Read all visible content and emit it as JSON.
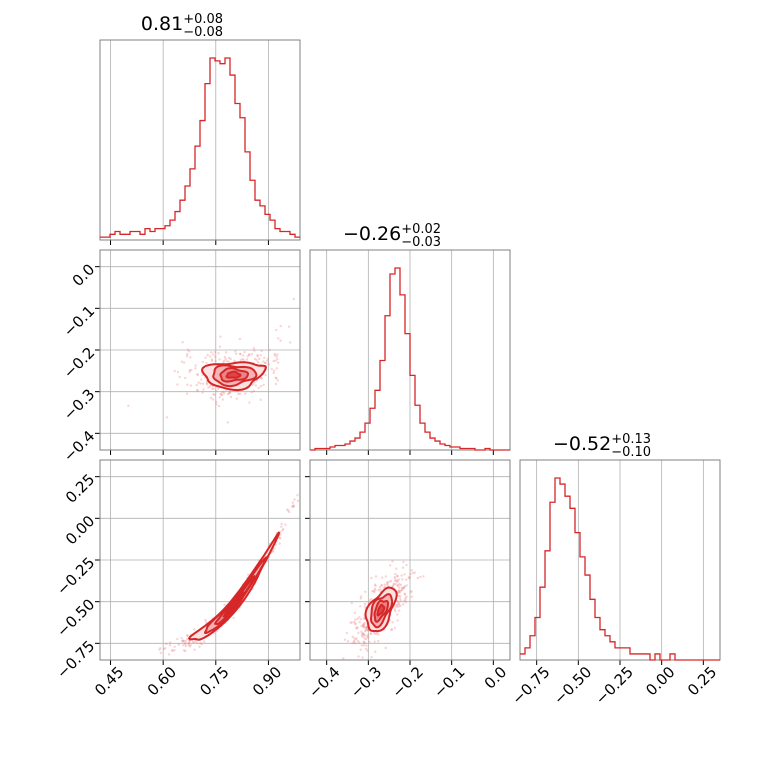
{
  "chart_data": {
    "type": "corner",
    "color": "#d62728",
    "grid": true,
    "parameters": [
      {
        "index": 0,
        "title_value": "0.81",
        "title_plus": "+0.08",
        "title_minus": "−0.08",
        "range": [
          0.42,
          0.99
        ],
        "ticks": [
          {
            "v": 0.45,
            "label": "0.45"
          },
          {
            "v": 0.6,
            "label": "0.60"
          },
          {
            "v": 0.75,
            "label": "0.75"
          },
          {
            "v": 0.9,
            "label": "0.90"
          }
        ]
      },
      {
        "index": 1,
        "title_value": "−0.26",
        "title_plus": "+0.02",
        "title_minus": "−0.03",
        "range": [
          -0.44,
          0.04
        ],
        "ticks": [
          {
            "v": -0.4,
            "label": "−0.4"
          },
          {
            "v": -0.3,
            "label": "−0.3"
          },
          {
            "v": -0.2,
            "label": "−0.2"
          },
          {
            "v": -0.1,
            "label": "−0.1"
          },
          {
            "v": 0.0,
            "label": "0.0"
          }
        ]
      },
      {
        "index": 2,
        "title_value": "−0.52",
        "title_plus": "+0.13",
        "title_minus": "−0.10",
        "range": [
          -0.85,
          0.35
        ],
        "ticks": [
          {
            "v": -0.75,
            "label": "−0.75"
          },
          {
            "v": -0.5,
            "label": "−0.50"
          },
          {
            "v": -0.25,
            "label": "−0.25"
          },
          {
            "v": 0.0,
            "label": "0.00"
          },
          {
            "v": 0.25,
            "label": "0.25"
          }
        ]
      }
    ],
    "row_ticks": {
      "1": [
        {
          "v": 0.0,
          "label": "0.0"
        },
        {
          "v": -0.1,
          "label": "−0.1"
        },
        {
          "v": -0.2,
          "label": "−0.2"
        },
        {
          "v": -0.3,
          "label": "−0.3"
        },
        {
          "v": -0.4,
          "label": "−0.4"
        }
      ],
      "2": [
        {
          "v": 0.25,
          "label": "0.25"
        },
        {
          "v": 0.0,
          "label": "0.00"
        },
        {
          "v": -0.25,
          "label": "−0.25"
        },
        {
          "v": -0.5,
          "label": "−0.50"
        },
        {
          "v": -0.75,
          "label": "−0.75"
        }
      ]
    },
    "histograms": [
      {
        "param": 0,
        "bins": 40,
        "counts": [
          1,
          1,
          2,
          3,
          2,
          2,
          3,
          3,
          2,
          4,
          3,
          4,
          4,
          5,
          7,
          10,
          14,
          19,
          25,
          33,
          42,
          55,
          64,
          63,
          62,
          64,
          58,
          48,
          43,
          31,
          21,
          14,
          12,
          9,
          7,
          4,
          3,
          3,
          2,
          1
        ]
      },
      {
        "param": 1,
        "bins": 40,
        "counts": [
          0,
          1,
          1,
          1,
          2,
          3,
          3,
          4,
          6,
          8,
          12,
          18,
          28,
          40,
          60,
          90,
          118,
          122,
          104,
          78,
          50,
          30,
          18,
          12,
          8,
          6,
          4,
          3,
          2,
          2,
          1,
          1,
          1,
          0,
          0,
          1,
          0,
          0,
          0,
          0
        ]
      },
      {
        "param": 2,
        "bins": 40,
        "counts": [
          1,
          2,
          4,
          7,
          12,
          18,
          26,
          30,
          29,
          27,
          25,
          21,
          17,
          14,
          10,
          7,
          5,
          4,
          3,
          2,
          2,
          2,
          1,
          1,
          1,
          1,
          0,
          1,
          0,
          0,
          1,
          0,
          0,
          0,
          0,
          0,
          0,
          0,
          0,
          0
        ]
      }
    ],
    "scatter_pairs": [
      {
        "x_param": 0,
        "y_param": 1,
        "center": [
          0.8,
          -0.26
        ],
        "spread": [
          0.06,
          0.025
        ]
      },
      {
        "x_param": 0,
        "y_param": 2,
        "center": [
          0.8,
          -0.52
        ],
        "spread": [
          0.07,
          0.08
        ]
      },
      {
        "x_param": 1,
        "y_param": 2,
        "center": [
          -0.27,
          -0.55
        ],
        "spread": [
          0.03,
          0.08
        ]
      }
    ],
    "contour_levels": 4
  }
}
